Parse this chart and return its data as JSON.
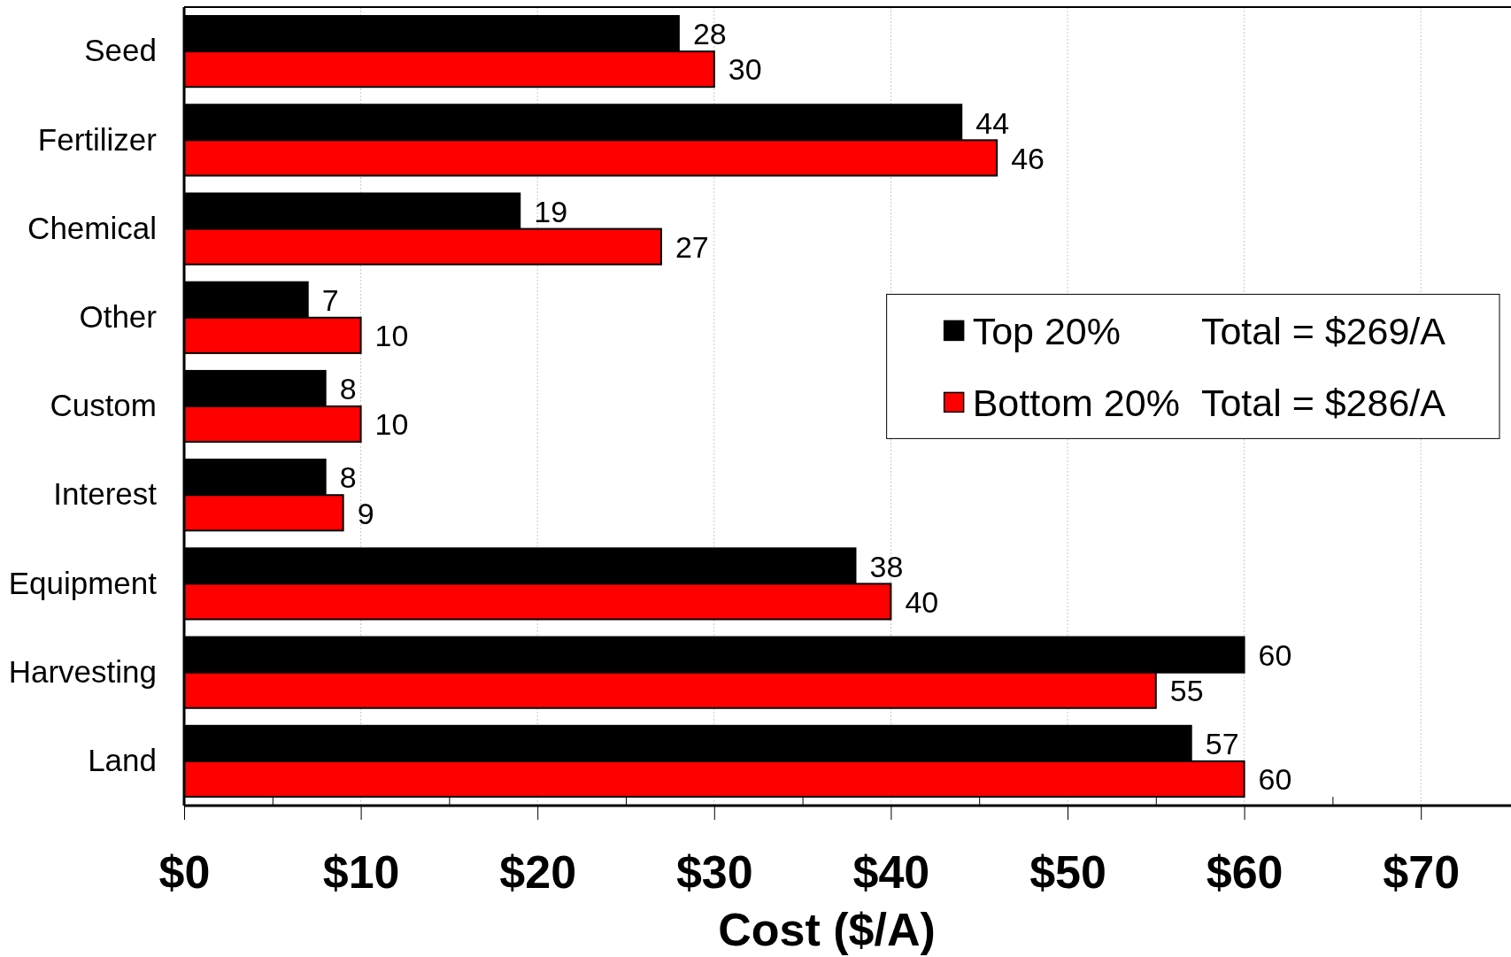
{
  "chart_data": {
    "type": "bar",
    "orientation": "horizontal",
    "xlabel": "Cost ($/A)",
    "categories": [
      "Seed",
      "Fertilizer",
      "Chemical",
      "Other",
      "Custom",
      "Interest",
      "Equipment",
      "Harvesting",
      "Land"
    ],
    "series": [
      {
        "name": "Top 20%",
        "color": "#000000",
        "values": [
          28,
          44,
          19,
          7,
          8,
          8,
          38,
          60,
          57
        ]
      },
      {
        "name": "Bottom 20%",
        "color": "#ff0000",
        "values": [
          30,
          46,
          27,
          10,
          10,
          9,
          40,
          55,
          60
        ]
      }
    ],
    "xlim": [
      0,
      75
    ],
    "xticks": [
      {
        "value": 0,
        "label": "$0"
      },
      {
        "value": 5,
        "label": null
      },
      {
        "value": 10,
        "label": "$10"
      },
      {
        "value": 15,
        "label": null
      },
      {
        "value": 20,
        "label": "$20"
      },
      {
        "value": 25,
        "label": null
      },
      {
        "value": 30,
        "label": "$30"
      },
      {
        "value": 35,
        "label": null
      },
      {
        "value": 40,
        "label": "$40"
      },
      {
        "value": 45,
        "label": null
      },
      {
        "value": 50,
        "label": "$50"
      },
      {
        "value": 55,
        "label": null
      },
      {
        "value": 60,
        "label": "$60"
      },
      {
        "value": 65,
        "label": null
      },
      {
        "value": 70,
        "label": "$70"
      }
    ],
    "grid": "x",
    "legend": "right",
    "data_labels": true,
    "annotations": [
      "Total = $269/A",
      "Total = $286/A"
    ]
  }
}
